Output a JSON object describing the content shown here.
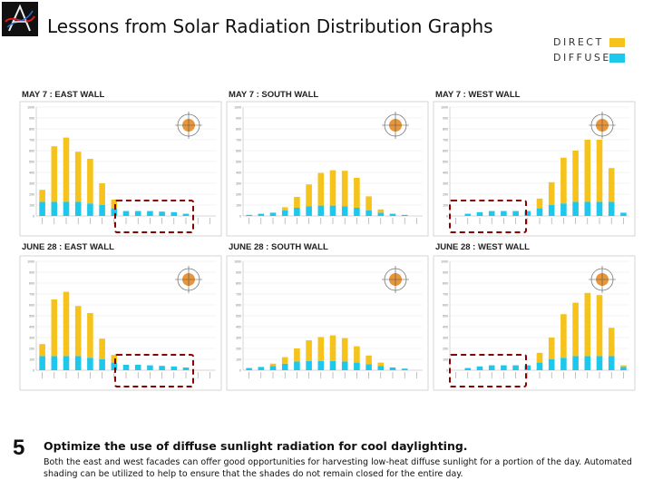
{
  "slide": {
    "title": "Lessons from Solar Radiation Distribution Graphs",
    "number": "5",
    "bottom_title": "Optimize the use of diffuse sunlight radiation for cool daylighting.",
    "bottom_body": "Both the east and west facades can offer good opportunities for harvesting low-heat diffuse sunlight for a portion of the day. Automated shading can be utilized to help to ensure that the shades do not remain closed for the entire day."
  },
  "legend": {
    "items": [
      {
        "label": "DIRECT",
        "color": "#F5C31B"
      },
      {
        "label": "DIFFUSE",
        "color": "#1EC8EC"
      }
    ]
  },
  "colors": {
    "direct": "#F5C31B",
    "diffuse": "#1EC8EC",
    "highlight": "#8B0000"
  },
  "chart_data": [
    {
      "type": "bar",
      "stacked": true,
      "title": "MAY 7 : EAST WALL",
      "ylim": [
        0,
        1000
      ],
      "series": [
        {
          "name": "DIFFUSE",
          "values": [
            130,
            130,
            130,
            130,
            115,
            100,
            70,
            45,
            45,
            45,
            40,
            35,
            20,
            0,
            0
          ]
        },
        {
          "name": "DIRECT",
          "values": [
            110,
            510,
            590,
            460,
            410,
            200,
            80,
            0,
            0,
            0,
            0,
            0,
            0,
            0,
            0
          ]
        }
      ]
    },
    {
      "type": "bar",
      "stacked": true,
      "title": "MAY 7 : SOUTH WALL",
      "ylim": [
        0,
        1000
      ],
      "series": [
        {
          "name": "DIFFUSE",
          "values": [
            10,
            20,
            30,
            50,
            75,
            90,
            95,
            95,
            90,
            75,
            50,
            30,
            20,
            10,
            0
          ]
        },
        {
          "name": "DIRECT",
          "values": [
            0,
            0,
            0,
            30,
            100,
            200,
            300,
            325,
            325,
            275,
            130,
            30,
            0,
            0,
            0
          ]
        }
      ]
    },
    {
      "type": "bar",
      "stacked": true,
      "title": "MAY 7 : WEST WALL",
      "ylim": [
        0,
        1000
      ],
      "series": [
        {
          "name": "DIFFUSE",
          "values": [
            0,
            20,
            35,
            45,
            45,
            45,
            45,
            70,
            100,
            115,
            130,
            130,
            130,
            130,
            30
          ]
        },
        {
          "name": "DIRECT",
          "values": [
            0,
            0,
            0,
            0,
            0,
            0,
            0,
            90,
            210,
            420,
            470,
            570,
            570,
            310,
            0
          ]
        }
      ]
    },
    {
      "type": "bar",
      "stacked": true,
      "title": "JUNE 28 : EAST WALL",
      "ylim": [
        0,
        1000
      ],
      "series": [
        {
          "name": "DIFFUSE",
          "values": [
            130,
            130,
            130,
            130,
            115,
            100,
            70,
            50,
            50,
            45,
            40,
            35,
            25,
            0,
            0
          ]
        },
        {
          "name": "DIRECT",
          "values": [
            110,
            520,
            590,
            460,
            410,
            190,
            70,
            0,
            0,
            0,
            0,
            0,
            0,
            0,
            0
          ]
        }
      ]
    },
    {
      "type": "bar",
      "stacked": true,
      "title": "JUNE 28 : SOUTH WALL",
      "ylim": [
        0,
        1000
      ],
      "series": [
        {
          "name": "DIFFUSE",
          "values": [
            20,
            30,
            40,
            60,
            80,
            85,
            85,
            85,
            80,
            70,
            55,
            40,
            25,
            15,
            0
          ]
        },
        {
          "name": "DIRECT",
          "values": [
            0,
            0,
            20,
            60,
            120,
            190,
            220,
            235,
            215,
            150,
            80,
            30,
            0,
            0,
            0
          ]
        }
      ]
    },
    {
      "type": "bar",
      "stacked": true,
      "title": "JUNE 28 : WEST WALL",
      "ylim": [
        0,
        1000
      ],
      "series": [
        {
          "name": "DIFFUSE",
          "values": [
            0,
            20,
            35,
            45,
            45,
            45,
            45,
            70,
            100,
            115,
            130,
            130,
            130,
            130,
            30
          ]
        },
        {
          "name": "DIRECT",
          "values": [
            0,
            0,
            0,
            0,
            0,
            0,
            0,
            90,
            200,
            400,
            490,
            580,
            560,
            260,
            15
          ]
        }
      ]
    }
  ]
}
